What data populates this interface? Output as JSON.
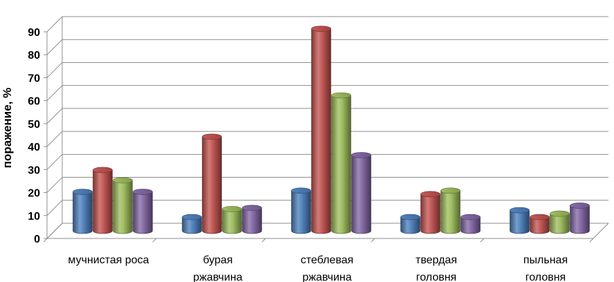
{
  "chart_data": {
    "type": "bar",
    "title": "",
    "xlabel": "",
    "ylabel": "поражение, %",
    "ylim": [
      0,
      90
    ],
    "yticks": [
      0,
      10,
      20,
      30,
      40,
      50,
      60,
      70,
      80,
      90
    ],
    "grid": true,
    "legend": "none",
    "categories": [
      [
        "мучнистая роса"
      ],
      [
        "бурая",
        "ржавчина"
      ],
      [
        "стеблевая",
        "ржавчина"
      ],
      [
        "твердая",
        "головня"
      ],
      [
        "пыльная",
        "головня"
      ]
    ],
    "series": [
      {
        "color": "#4a7ebb",
        "values": [
          17,
          6,
          17.5,
          6,
          9
        ]
      },
      {
        "color": "#c0504d",
        "values": [
          26.5,
          41,
          88,
          16,
          6
        ]
      },
      {
        "color": "#9bbb59",
        "values": [
          22,
          9.5,
          59,
          17.5,
          7.5
        ]
      },
      {
        "color": "#8064a2",
        "values": [
          17,
          10,
          33,
          6,
          11
        ]
      }
    ]
  }
}
